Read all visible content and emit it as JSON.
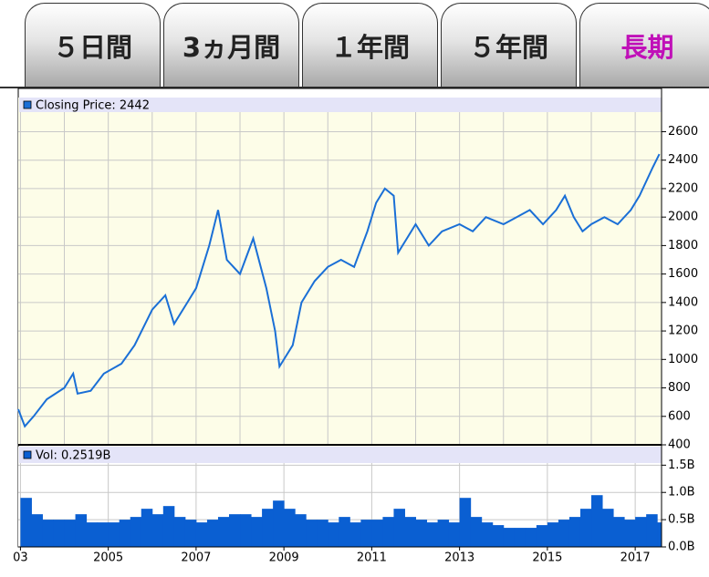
{
  "tabs": {
    "labels": [
      "５日間",
      "3ヵ月間",
      "１年間",
      "５年間",
      "長期"
    ],
    "active": 4
  },
  "chart_data": [
    {
      "type": "line",
      "series": [
        {
          "name": "Closing Price: 2442",
          "color": "#1a6fd6",
          "x": [
            2002.95,
            2003.1,
            2003.3,
            2003.6,
            2004.0,
            2004.2,
            2004.3,
            2004.6,
            2004.9,
            2005.3,
            2005.6,
            2006.0,
            2006.3,
            2006.5,
            2006.8,
            2007.0,
            2007.3,
            2007.5,
            2007.7,
            2008.0,
            2008.3,
            2008.6,
            2008.8,
            2008.9,
            2009.2,
            2009.4,
            2009.7,
            2010.0,
            2010.3,
            2010.6,
            2010.9,
            2011.1,
            2011.3,
            2011.5,
            2011.6,
            2011.8,
            2012.0,
            2012.3,
            2012.6,
            2013.0,
            2013.3,
            2013.6,
            2014.0,
            2014.3,
            2014.6,
            2014.9,
            2015.2,
            2015.4,
            2015.6,
            2015.8,
            2016.0,
            2016.3,
            2016.6,
            2016.9,
            2017.1,
            2017.4,
            2017.55
          ],
          "values": [
            650,
            530,
            600,
            720,
            800,
            900,
            760,
            780,
            900,
            970,
            1100,
            1350,
            1450,
            1250,
            1400,
            1500,
            1800,
            2050,
            1700,
            1600,
            1850,
            1500,
            1200,
            950,
            1100,
            1400,
            1550,
            1650,
            1700,
            1650,
            1900,
            2100,
            2200,
            2150,
            1750,
            1850,
            1950,
            1800,
            1900,
            1950,
            1900,
            2000,
            1950,
            2000,
            2050,
            1950,
            2050,
            2150,
            2000,
            1900,
            1950,
            2000,
            1950,
            2050,
            2150,
            2350,
            2442
          ]
        }
      ],
      "xlim": [
        2002.95,
        2017.6
      ],
      "xticks": [
        2003,
        2004,
        2005,
        2006,
        2007,
        2008,
        2009,
        2010,
        2011,
        2012,
        2013,
        2014,
        2015,
        2016,
        2017
      ],
      "ylim": [
        400,
        2840
      ],
      "yticks": [
        400,
        600,
        800,
        1000,
        1200,
        1400,
        1600,
        1800,
        2000,
        2200,
        2400,
        2600
      ],
      "grid": true
    },
    {
      "type": "bar",
      "series": [
        {
          "name": "Vol: 0.2519B",
          "color": "#0a5fd2",
          "x": [
            2003,
            2003.25,
            2003.5,
            2003.75,
            2004,
            2004.25,
            2004.5,
            2004.75,
            2005,
            2005.25,
            2005.5,
            2005.75,
            2006,
            2006.25,
            2006.5,
            2006.75,
            2007,
            2007.25,
            2007.5,
            2007.75,
            2008,
            2008.25,
            2008.5,
            2008.75,
            2009,
            2009.25,
            2009.5,
            2009.75,
            2010,
            2010.25,
            2010.5,
            2010.75,
            2011,
            2011.25,
            2011.5,
            2011.75,
            2012,
            2012.25,
            2012.5,
            2012.75,
            2013,
            2013.25,
            2013.5,
            2013.75,
            2014,
            2014.25,
            2014.5,
            2014.75,
            2015,
            2015.25,
            2015.5,
            2015.75,
            2016,
            2016.25,
            2016.5,
            2016.75,
            2017,
            2017.25,
            2017.5
          ],
          "values": [
            0.9,
            0.6,
            0.5,
            0.5,
            0.5,
            0.6,
            0.45,
            0.45,
            0.45,
            0.5,
            0.55,
            0.7,
            0.6,
            0.75,
            0.55,
            0.5,
            0.45,
            0.5,
            0.55,
            0.6,
            0.6,
            0.55,
            0.7,
            0.85,
            0.7,
            0.6,
            0.5,
            0.5,
            0.45,
            0.55,
            0.45,
            0.5,
            0.5,
            0.55,
            0.7,
            0.55,
            0.5,
            0.45,
            0.5,
            0.45,
            0.9,
            0.55,
            0.45,
            0.4,
            0.35,
            0.35,
            0.35,
            0.4,
            0.45,
            0.5,
            0.55,
            0.7,
            0.95,
            0.7,
            0.55,
            0.5,
            0.55,
            0.6,
            0.45
          ]
        }
      ],
      "xlim": [
        2002.95,
        2017.6
      ],
      "xticks": [
        {
          "value": 2003,
          "label": "03"
        },
        2005,
        2007,
        2009,
        2011,
        2013,
        2015,
        2017
      ],
      "ylim": [
        0,
        1.84
      ],
      "yticks": [
        {
          "value": 0,
          "label": "0.0B"
        },
        {
          "value": 0.5,
          "label": "0.5B"
        },
        {
          "value": 1.0,
          "label": "1.0B"
        },
        {
          "value": 1.5,
          "label": "1.5B"
        }
      ],
      "grid": true
    }
  ]
}
